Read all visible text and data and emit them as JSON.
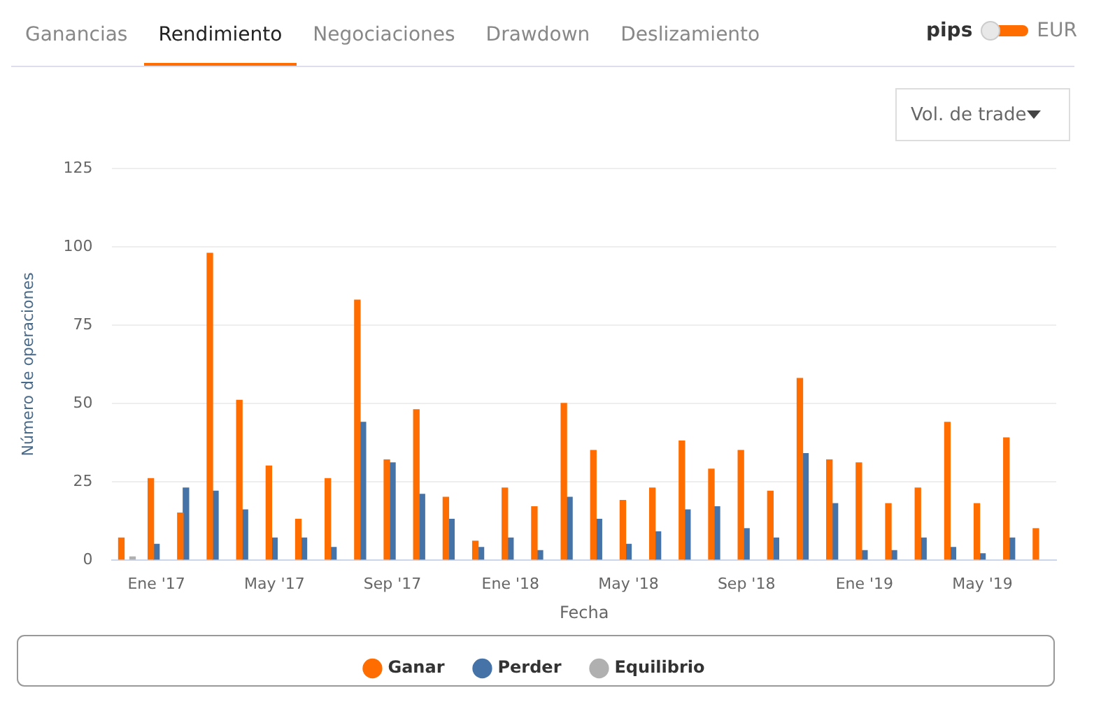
{
  "chart_data": {
    "type": "bar",
    "xlabel": "Fecha",
    "ylabel": "Número de operaciones",
    "categories": [
      null,
      "Ene '17",
      null,
      null,
      null,
      "May '17",
      null,
      null,
      null,
      "Sep '17",
      null,
      null,
      null,
      "Ene '18",
      null,
      null,
      null,
      "May '18",
      null,
      null,
      null,
      "Sep '18",
      null,
      null,
      null,
      "Ene '19",
      null,
      null,
      null,
      "May '19",
      null,
      null
    ],
    "series": [
      {
        "name": "Ganar",
        "color": "#ff6d00",
        "values": [
          7,
          26,
          15,
          98,
          51,
          30,
          13,
          26,
          83,
          32,
          48,
          20,
          6,
          23,
          17,
          50,
          35,
          19,
          23,
          38,
          29,
          35,
          22,
          58,
          32,
          31,
          18,
          23,
          44,
          18,
          39,
          10
        ]
      },
      {
        "name": "Perder",
        "color": "#4572a7",
        "values": [
          null,
          5,
          23,
          22,
          16,
          7,
          7,
          4,
          44,
          31,
          21,
          13,
          4,
          7,
          3,
          20,
          13,
          5,
          9,
          16,
          17,
          10,
          7,
          34,
          18,
          3,
          3,
          7,
          4,
          2,
          7,
          null
        ]
      },
      {
        "name": "Equilibrio",
        "color": "#b0b0b0",
        "values": [
          1,
          null,
          null,
          null,
          null,
          null,
          null,
          null,
          null,
          null,
          null,
          null,
          null,
          null,
          null,
          null,
          null,
          null,
          null,
          null,
          null,
          null,
          null,
          null,
          null,
          null,
          null,
          null,
          null,
          null,
          null,
          null
        ]
      }
    ],
    "ylim": [
      0,
      125
    ],
    "yticks": [
      0,
      25,
      50,
      75,
      100,
      125
    ],
    "grid": "y",
    "legend": "bottom",
    "annotations": [
      "Ganancias",
      "Rendimiento",
      "Negociaciones",
      "Drawdown",
      "Deslizamiento",
      "pips",
      "EUR",
      "Vol. de trade"
    ]
  }
}
